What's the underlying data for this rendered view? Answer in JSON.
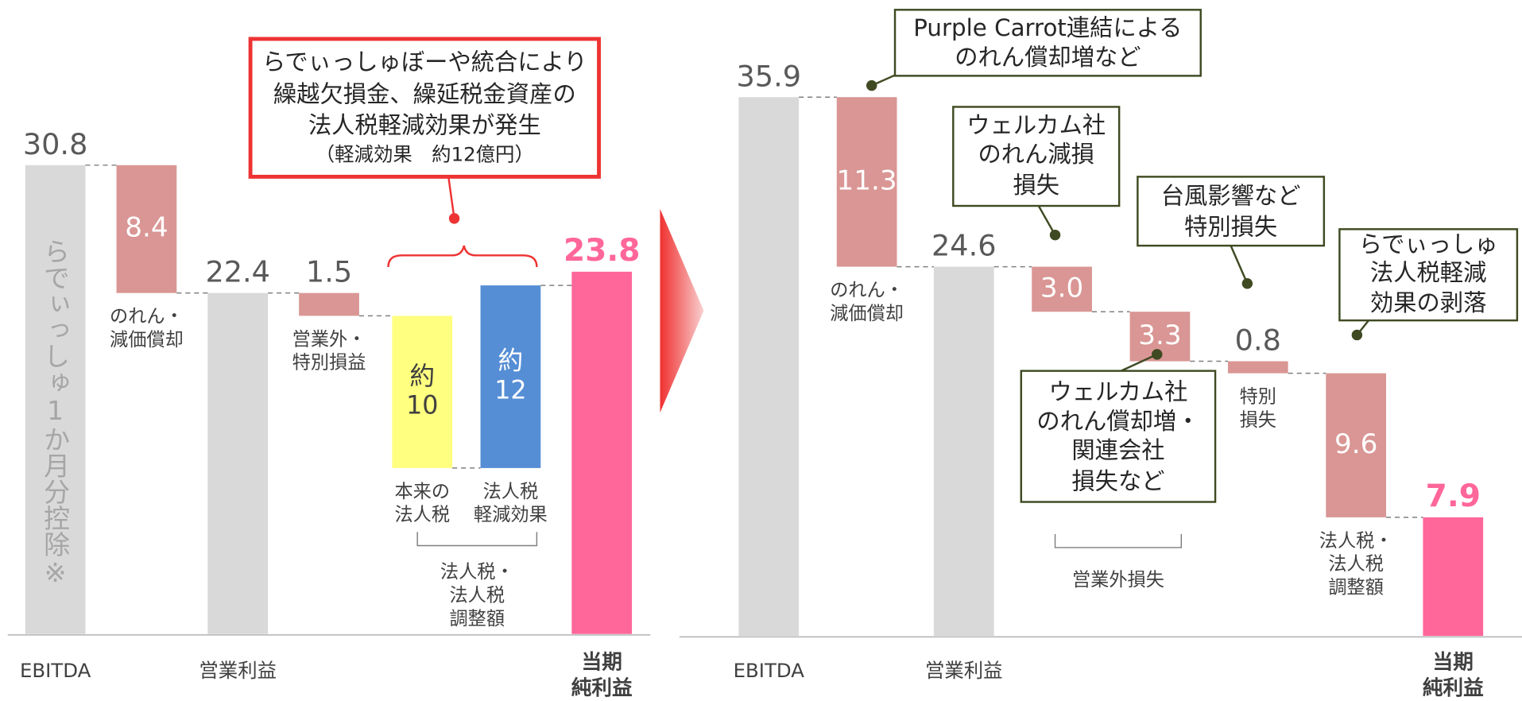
{
  "chart_data": [
    {
      "type": "waterfall",
      "categories": [
        [
          "EBITDA"
        ],
        [
          "のれん・",
          "減価償却"
        ],
        [
          "営業利益"
        ],
        [
          "営業外・",
          "特別損益"
        ],
        [
          "本来の",
          "法人税"
        ],
        [
          "法人税",
          "軽減効果"
        ],
        [
          "当期",
          "純利益"
        ]
      ],
      "values": [
        30.8,
        8.4,
        22.4,
        1.5,
        10,
        12,
        23.8
      ],
      "value_labels": [
        [
          "30.8"
        ],
        [
          "8.4"
        ],
        [
          "22.4"
        ],
        [
          "1.5"
        ],
        [
          "約",
          "10"
        ],
        [
          "約",
          "12"
        ],
        [
          "23.8"
        ]
      ],
      "kinds": [
        "total",
        "decrease",
        "total",
        "decrease",
        "decrease",
        "increase",
        "total"
      ],
      "colors": [
        "#d9d9d9",
        "#d99694",
        "#d9d9d9",
        "#d99694",
        "#ffff80",
        "#558ed5",
        "#ff6699"
      ],
      "bar_note": "らでぃっしゅ1か月分控除※",
      "group_labels": [
        [
          "法人税・",
          "法人税",
          "調整額"
        ]
      ],
      "annotations": [
        [
          "らでぃっしゅぼーや統合により",
          "繰越欠損金、繰延税金資産の",
          "法人税軽減効果が発生",
          "（軽減効果　約12億円）"
        ]
      ]
    },
    {
      "type": "waterfall",
      "categories": [
        [
          "EBITDA"
        ],
        [
          "のれん・",
          "減価償却"
        ],
        [
          "営業利益"
        ],
        null,
        null,
        [
          "特別",
          "損失"
        ],
        [
          "法人税・",
          "法人税",
          "調整額"
        ],
        [
          "当期",
          "純利益"
        ]
      ],
      "values": [
        35.9,
        11.3,
        24.6,
        3.0,
        3.3,
        0.8,
        9.6,
        7.9
      ],
      "value_labels": [
        [
          "35.9"
        ],
        [
          "11.3"
        ],
        [
          "24.6"
        ],
        [
          "3.0"
        ],
        [
          "3.3"
        ],
        [
          "0.8"
        ],
        [
          "9.6"
        ],
        [
          "7.9"
        ]
      ],
      "kinds": [
        "total",
        "decrease",
        "total",
        "decrease",
        "decrease",
        "decrease",
        "decrease",
        "total"
      ],
      "colors": [
        "#d9d9d9",
        "#d99694",
        "#d9d9d9",
        "#d99694",
        "#d99694",
        "#d99694",
        "#d99694",
        "#ff6699"
      ],
      "group_labels": [
        [
          "営業外損失"
        ]
      ],
      "annotations": [
        [
          "Purple Carrot連結による",
          "のれん償却増など"
        ],
        [
          "ウェルカム社",
          "のれん減損",
          "損失"
        ],
        [
          "台風影響など",
          "特別損失"
        ],
        [
          "らでぃっしゅ",
          "法人税軽減",
          "効果の剥落"
        ],
        [
          "ウェルカム社",
          "のれん償却増・",
          "関連会社",
          "損失など"
        ]
      ]
    }
  ]
}
